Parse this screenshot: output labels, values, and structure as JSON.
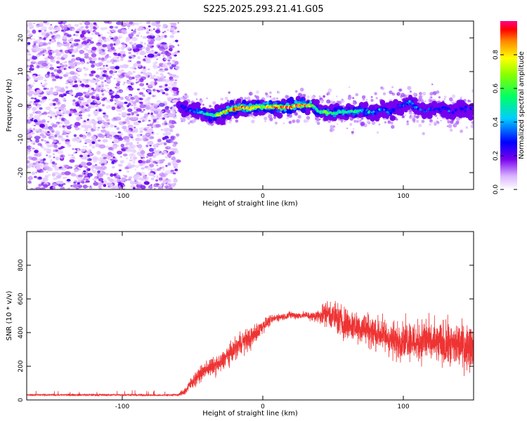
{
  "figure": {
    "title": "S225.2025.293.21.41.G05"
  },
  "chart_data": [
    {
      "type": "heatmap",
      "xlabel": "Height of straight line (km)",
      "ylabel": "Frequency (Hz)",
      "xlim": [
        -168,
        150
      ],
      "ylim": [
        -25,
        25
      ],
      "x_ticks": [
        -100,
        0,
        100
      ],
      "y_ticks": [
        -20,
        -10,
        0,
        10,
        20
      ],
      "colorbar": {
        "label": "Normalized spectral amplitude",
        "range": [
          0,
          1
        ],
        "ticks": [
          0.0,
          0.2,
          0.4,
          0.6,
          0.8
        ]
      },
      "noise_region": {
        "x_range": [
          -168,
          -60
        ],
        "note_visible": false
      },
      "ridge": [
        [
          -60,
          0,
          0.25
        ],
        [
          -55,
          -1,
          0.35
        ],
        [
          -50,
          -2,
          0.4
        ],
        [
          -45,
          -2,
          0.45
        ],
        [
          -40,
          -2.5,
          0.5
        ],
        [
          -35,
          -3,
          0.6
        ],
        [
          -30,
          -2.5,
          0.7
        ],
        [
          -25,
          -1.5,
          0.8
        ],
        [
          -20,
          -1,
          0.95
        ],
        [
          -15,
          -0.5,
          0.9
        ],
        [
          -10,
          -1,
          0.85
        ],
        [
          -5,
          -0.5,
          0.75
        ],
        [
          0,
          -0.5,
          0.8
        ],
        [
          5,
          -0.5,
          0.85
        ],
        [
          10,
          -0.5,
          0.9
        ],
        [
          15,
          -0.5,
          0.88
        ],
        [
          20,
          -0.5,
          0.9
        ],
        [
          25,
          0,
          0.95
        ],
        [
          30,
          0,
          0.9
        ],
        [
          35,
          0,
          0.6
        ],
        [
          40,
          -2,
          0.55
        ],
        [
          45,
          -2,
          0.65
        ],
        [
          50,
          -2.5,
          0.6
        ],
        [
          55,
          -2,
          0.55
        ],
        [
          60,
          -2,
          0.5
        ],
        [
          65,
          -2,
          0.55
        ],
        [
          70,
          -1.5,
          0.45
        ],
        [
          75,
          -2,
          0.5
        ],
        [
          80,
          -2,
          0.45
        ],
        [
          85,
          -1,
          0.4
        ],
        [
          90,
          -2,
          0.45
        ],
        [
          95,
          -1,
          0.3
        ],
        [
          100,
          0,
          0.4
        ],
        [
          105,
          1,
          0.5
        ],
        [
          110,
          -1,
          0.35
        ],
        [
          115,
          -2,
          0.3
        ],
        [
          120,
          -1,
          0.35
        ],
        [
          125,
          -1,
          0.3
        ],
        [
          130,
          -1,
          0.4
        ],
        [
          135,
          -2,
          0.3
        ],
        [
          140,
          -1,
          0.3
        ],
        [
          145,
          -1,
          0.35
        ],
        [
          150,
          -1,
          0.3
        ]
      ]
    },
    {
      "type": "line",
      "xlabel": "Height of straight line (km)",
      "ylabel": "SNR (10 * v/v)",
      "xlim": [
        -168,
        150
      ],
      "ylim": [
        0,
        1000
      ],
      "x_ticks": [
        -100,
        0,
        100
      ],
      "y_ticks": [
        0,
        200,
        400,
        600,
        800
      ],
      "color": "#ee3333",
      "series": [
        {
          "x": [
            -168,
            -150,
            -125,
            -100,
            -75,
            -60,
            -55,
            -50,
            -45,
            -40,
            -35,
            -30,
            -25,
            -20,
            -15,
            -10,
            -5,
            0,
            5,
            10,
            15,
            20,
            25,
            30,
            35,
            40,
            45,
            50,
            55,
            60,
            65,
            70,
            75,
            80,
            85,
            90,
            95,
            100,
            105,
            110,
            115,
            120,
            125,
            130,
            135,
            140,
            145,
            150
          ],
          "y": [
            30,
            30,
            30,
            30,
            28,
            30,
            55,
            110,
            150,
            185,
            200,
            215,
            265,
            300,
            345,
            355,
            395,
            440,
            470,
            490,
            495,
            505,
            500,
            505,
            495,
            500,
            520,
            500,
            470,
            450,
            440,
            430,
            420,
            395,
            390,
            365,
            345,
            370,
            360,
            340,
            360,
            340,
            335,
            325,
            320,
            330,
            320,
            330
          ],
          "amplitude": [
            8,
            8,
            9,
            8,
            8,
            10,
            35,
            55,
            60,
            70,
            75,
            80,
            85,
            90,
            95,
            100,
            80,
            60,
            40,
            30,
            30,
            30,
            30,
            30,
            40,
            60,
            110,
            130,
            140,
            140,
            140,
            140,
            145,
            145,
            150,
            155,
            160,
            160,
            170,
            180,
            190,
            190,
            190,
            200,
            200,
            200,
            200,
            190
          ]
        }
      ]
    }
  ]
}
